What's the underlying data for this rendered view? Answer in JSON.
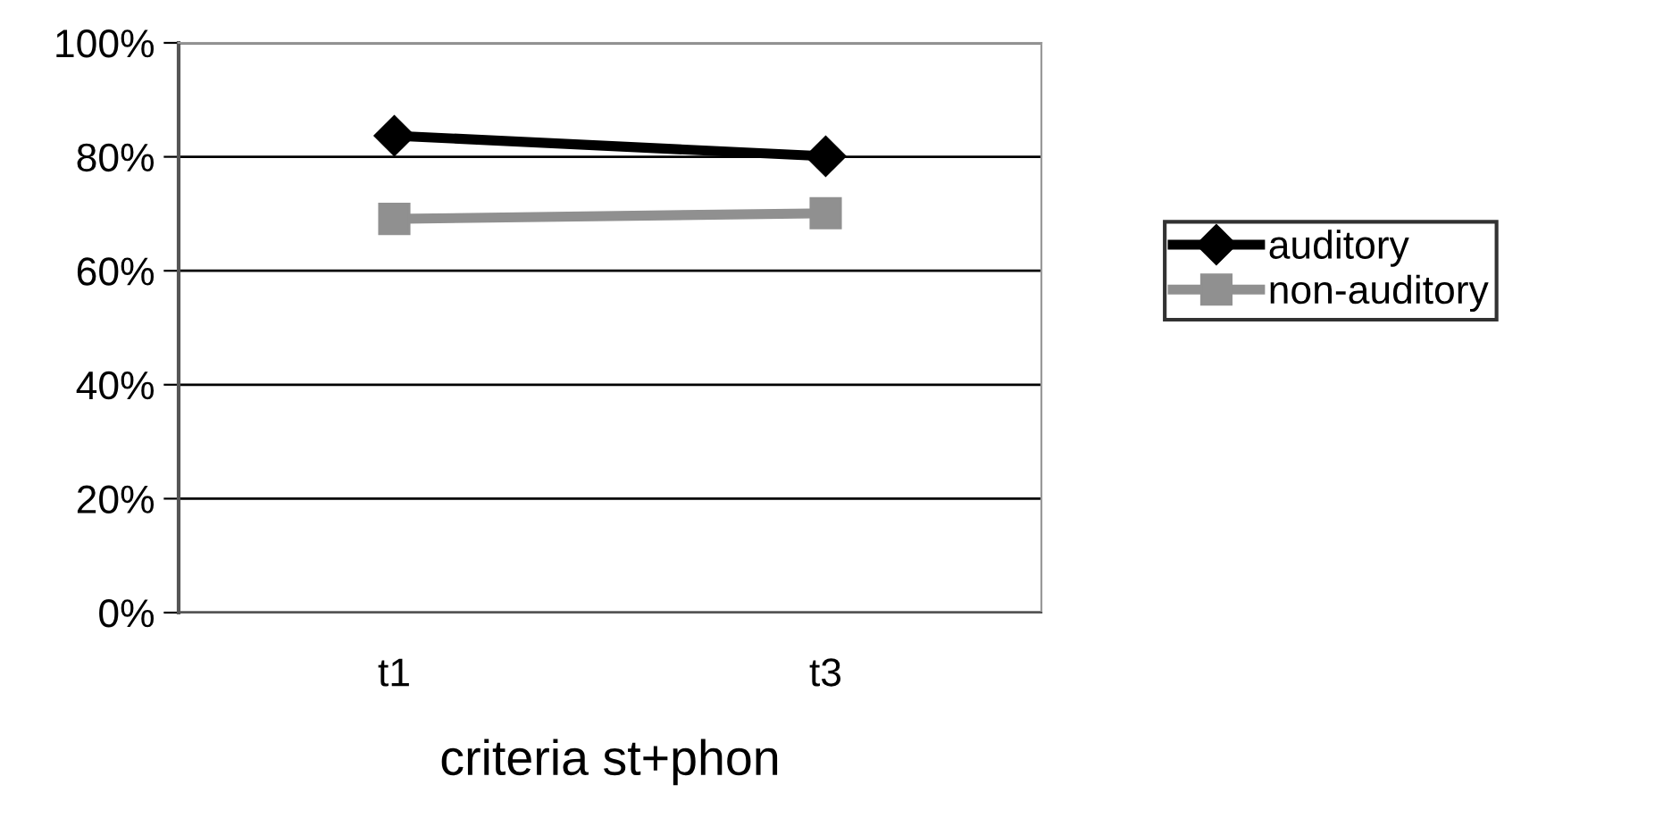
{
  "chart_data": {
    "type": "line",
    "xlabel": "criteria st+phon",
    "categories": [
      "t1",
      "t3"
    ],
    "series": [
      {
        "name": "auditory",
        "color": "#000000",
        "marker": "diamond",
        "values": [
          83.7,
          80.1
        ]
      },
      {
        "name": "non-auditory",
        "color": "#909090",
        "marker": "square",
        "values": [
          69.1,
          70.1
        ]
      }
    ],
    "ylim": [
      0,
      100
    ],
    "yticks": [
      {
        "value": 0,
        "label": "0%"
      },
      {
        "value": 20,
        "label": "20%"
      },
      {
        "value": 40,
        "label": "40%"
      },
      {
        "value": 60,
        "label": "60%"
      },
      {
        "value": 80,
        "label": "80%"
      },
      {
        "value": 100,
        "label": "100%"
      }
    ],
    "grid": "y",
    "legend": "right"
  }
}
